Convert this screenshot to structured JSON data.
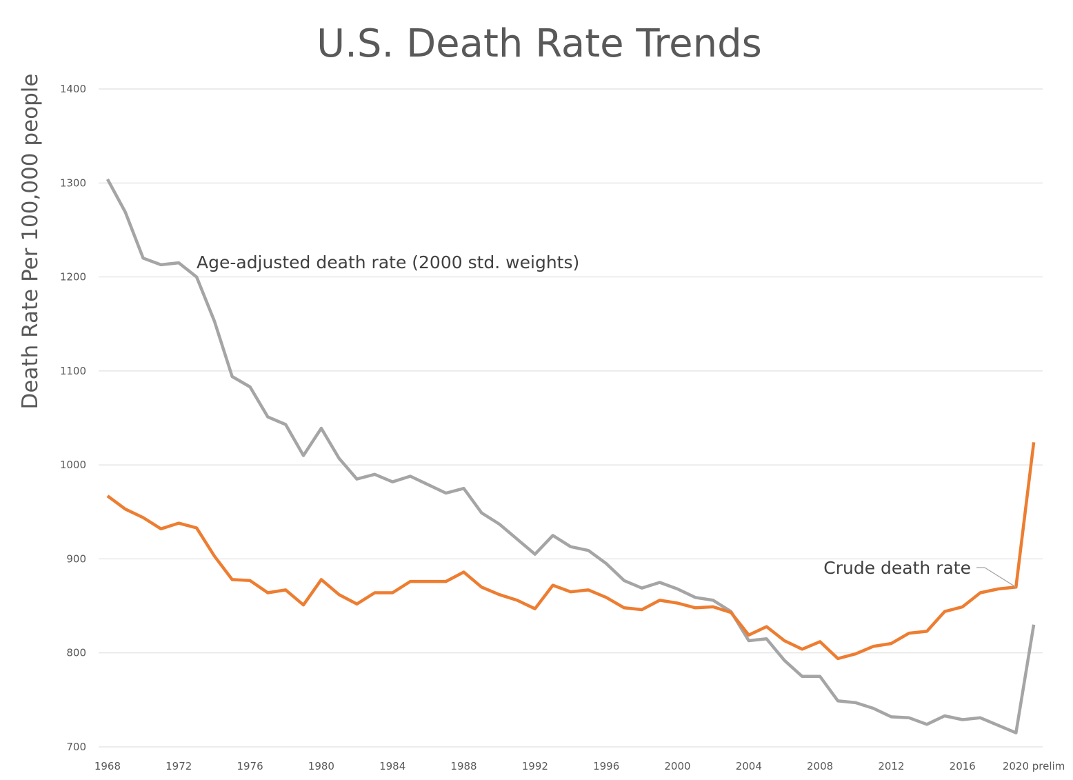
{
  "chart_data": {
    "type": "line",
    "title": "U.S. Death Rate Trends",
    "xlabel": "",
    "ylabel": "Death Rate Per 100,000 people",
    "ylim": [
      700,
      1400
    ],
    "yticks": [
      700,
      800,
      900,
      1000,
      1100,
      1200,
      1300,
      1400
    ],
    "x": [
      1968,
      1969,
      1970,
      1971,
      1972,
      1973,
      1974,
      1975,
      1976,
      1977,
      1978,
      1979,
      1980,
      1981,
      1982,
      1983,
      1984,
      1985,
      1986,
      1987,
      1988,
      1989,
      1990,
      1991,
      1992,
      1993,
      1994,
      1995,
      1996,
      1997,
      1998,
      1999,
      2000,
      2001,
      2002,
      2003,
      2004,
      2005,
      2006,
      2007,
      2008,
      2009,
      2010,
      2011,
      2012,
      2013,
      2014,
      2015,
      2016,
      2017,
      2018,
      2019,
      2020
    ],
    "xtick_labels": [
      "1968",
      "1972",
      "1976",
      "1980",
      "1984",
      "1988",
      "1992",
      "1996",
      "2000",
      "2004",
      "2008",
      "2012",
      "2016",
      "2020 prelim"
    ],
    "grid": "horizontal",
    "series": [
      {
        "name": "Age-adjusted death rate (2000 std. weights)",
        "color": "#a5a5a5",
        "values": [
          1304,
          1269,
          1220,
          1213,
          1215,
          1200,
          1153,
          1094,
          1083,
          1051,
          1043,
          1010,
          1039,
          1007,
          985,
          990,
          982,
          988,
          979,
          970,
          975,
          949,
          937,
          921,
          905,
          925,
          913,
          909,
          895,
          877,
          869,
          875,
          868,
          859,
          856,
          844,
          813,
          815,
          792,
          775,
          775,
          749,
          747,
          741,
          732,
          731,
          724,
          733,
          729,
          731,
          723,
          715,
          830
        ]
      },
      {
        "name": "Crude death rate",
        "color": "#ed7d31",
        "values": [
          967,
          953,
          944,
          932,
          938,
          933,
          903,
          878,
          877,
          864,
          867,
          851,
          878,
          862,
          852,
          864,
          864,
          876,
          876,
          876,
          886,
          870,
          862,
          856,
          847,
          872,
          865,
          867,
          859,
          848,
          846,
          856,
          853,
          848,
          849,
          843,
          819,
          828,
          813,
          804,
          812,
          794,
          799,
          807,
          810,
          821,
          823,
          844,
          849,
          864,
          868,
          870,
          1024
        ]
      }
    ]
  }
}
